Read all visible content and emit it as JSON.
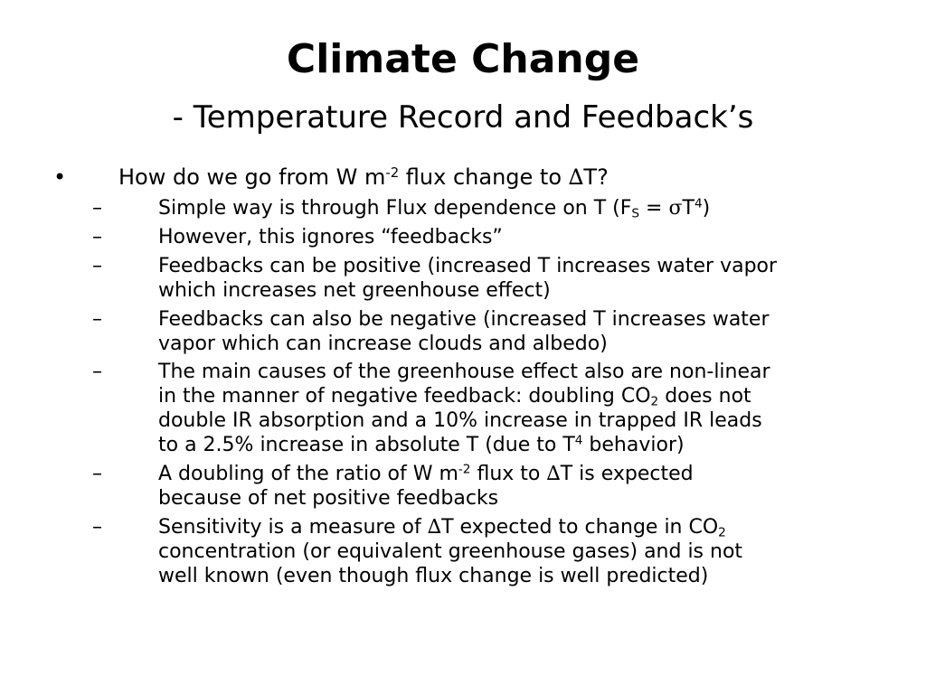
{
  "slide": {
    "title": "Climate Change",
    "subtitle": "- Temperature Record and Feedback’s",
    "bullet": {
      "marker": "•",
      "text_a": "How do we go from W m",
      "sup_a": "-2",
      "text_b": " flux change to ",
      "delta": "∆",
      "text_c": "T?"
    },
    "sub_marker": "–",
    "items": {
      "simple": {
        "text_a": "Simple way is through Flux dependence on T (F",
        "sub_s": "S",
        "text_b": " = ",
        "sigma": "σ",
        "text_c": "T",
        "sup_4": "4",
        "text_d": ")"
      },
      "however": {
        "line1": "However, this ignores “feedbacks”"
      },
      "positive": {
        "line1": "Feedbacks can be positive (increased T increases water vapor",
        "line2": "which increases net greenhouse effect)"
      },
      "negative": {
        "line1": "Feedbacks can also be negative (increased T increases water",
        "line2": "vapor which can increase clouds and albedo)"
      },
      "main_causes": {
        "line1": "The main causes of the greenhouse effect also are non-linear",
        "line2_a": "in the manner of negative feedback: doubling CO",
        "line2_sub": "2",
        "line2_b": " does not",
        "line3": "double IR absorption and a 10% increase in trapped IR leads",
        "line4_a": "to a 2.5% increase in absolute T (due to T",
        "line4_sup": "4",
        "line4_b": " behavior)"
      },
      "doubling": {
        "line1_a": "A doubling of the ratio of W m",
        "line1_sup": "-2",
        "line1_b": " flux to ",
        "line1_delta": "∆",
        "line1_c": "T is expected",
        "line2": "because of net positive feedbacks"
      },
      "sensitivity": {
        "line1_a": "Sensitivity is a measure of ",
        "line1_delta": "∆",
        "line1_b": "T expected to change in CO",
        "line1_sub": "2",
        "line2": "concentration (or equivalent greenhouse gases) and is not",
        "line3": "well known (even though flux change is well predicted)"
      }
    }
  }
}
